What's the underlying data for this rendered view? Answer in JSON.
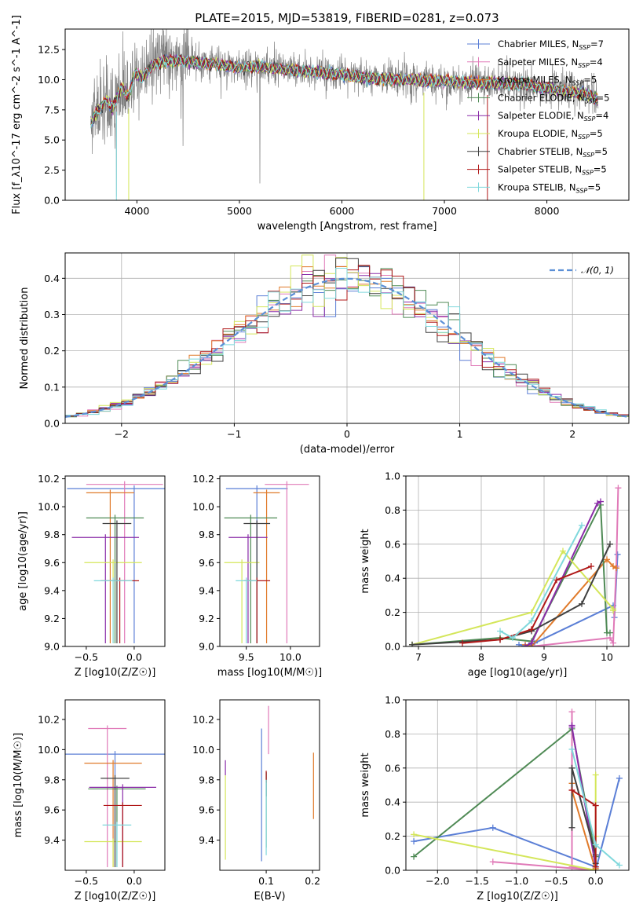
{
  "series_styles": [
    {
      "name": "Chabrier MILES",
      "n": "7",
      "color": "#5b7fd6"
    },
    {
      "name": "Salpeter MILES",
      "n": "4",
      "color": "#e07ab8"
    },
    {
      "name": "Kroupa MILES",
      "n": "5",
      "color": "#e07a2a"
    },
    {
      "name": "Chabrier ELODIE",
      "n": "5",
      "color": "#4f8a55"
    },
    {
      "name": "Salpeter ELODIE",
      "n": "4",
      "color": "#8a2ba8"
    },
    {
      "name": "Kroupa ELODIE",
      "n": "5",
      "color": "#d4e65a"
    },
    {
      "name": "Chabrier STELIB",
      "n": "5",
      "color": "#404040"
    },
    {
      "name": "Salpeter STELIB",
      "n": "5",
      "color": "#b01818"
    },
    {
      "name": "Kroupa STELIB",
      "n": "5",
      "color": "#7fd8dc"
    }
  ],
  "chart_data": [
    {
      "id": "spectrum",
      "type": "line",
      "title": "PLATE=2015, MJD=53819, FIBERID=0281, z=0.073",
      "xlabel": "wavelength [Angstrom, rest frame]",
      "ylabel": "Flux [f_λ10^-17 erg cm^-2 s^-1 A^-1]",
      "xlim": [
        3300,
        8800
      ],
      "ylim": [
        0,
        14.2
      ],
      "xticks": [
        "4000",
        "5000",
        "6000",
        "7000",
        "8000"
      ],
      "yticks": [
        "0.0",
        "2.5",
        "5.0",
        "7.5",
        "10.0",
        "12.5"
      ],
      "data_color": "#808080",
      "continuum": {
        "x": [
          3550,
          3620,
          3700,
          3760,
          3850,
          3920,
          3980,
          4050,
          4150,
          4250,
          4400,
          4600,
          4800,
          5000,
          5200,
          5500,
          5800,
          6000,
          6300,
          6600,
          6900,
          7200,
          7500,
          7800,
          8000,
          8200,
          8400,
          8500
        ],
        "y": [
          6.4,
          7.4,
          8.3,
          7.6,
          9.3,
          8.6,
          10.6,
          10.1,
          11.2,
          11.5,
          11.6,
          11.4,
          11.3,
          11.0,
          11.1,
          10.8,
          10.6,
          10.4,
          10.1,
          10.0,
          9.9,
          9.8,
          9.7,
          9.6,
          9.3,
          9.0,
          8.8,
          8.3
        ]
      },
      "legend_position": "upper right"
    },
    {
      "id": "residuals",
      "type": "histogram",
      "xlabel": "(data-model)/error",
      "ylabel": "Normed distribution",
      "xlim": [
        -2.5,
        2.5
      ],
      "ylim": [
        0,
        0.47
      ],
      "xticks": [
        "−2",
        "−1",
        "0",
        "1",
        "2"
      ],
      "yticks": [
        "0.0",
        "0.1",
        "0.2",
        "0.3",
        "0.4"
      ],
      "bin_width": 0.1,
      "bins_start": -2.5,
      "legend": "N(0,1)",
      "legend_position": "upper right",
      "grid": true
    },
    {
      "id": "age-vs-Z",
      "type": "errorbar",
      "xlabel": "Z [log10(Z/Z☉)]",
      "ylabel": "age  [log10(age/yr)]",
      "xlim": [
        -0.72,
        0.32
      ],
      "ylim": [
        9.0,
        10.22
      ],
      "xticks": [
        "−0.5",
        "0.0"
      ],
      "yticks": [
        "9.0",
        "9.2",
        "9.4",
        "9.6",
        "9.8",
        "10.0",
        "10.2"
      ],
      "points": [
        {
          "x": 0.0,
          "y": 10.13,
          "xerr": 0.7,
          "yerr": 0.0,
          "color": "#5b7fd6"
        },
        {
          "x": -0.1,
          "y": 10.16,
          "xerr": 0.4,
          "yerr": 0.0,
          "color": "#e07ab8"
        },
        {
          "x": -0.25,
          "y": 10.1,
          "xerr": 0.25,
          "yerr": 0.0,
          "color": "#e07a2a"
        },
        {
          "x": -0.2,
          "y": 9.92,
          "xerr": 0.3,
          "yerr": 0.0,
          "color": "#4f8a55"
        },
        {
          "x": -0.3,
          "y": 9.78,
          "xerr": 0.35,
          "yerr": 0.0,
          "color": "#8a2ba8"
        },
        {
          "x": -0.22,
          "y": 9.6,
          "xerr": 0.3,
          "yerr": 0.0,
          "color": "#d4e65a"
        },
        {
          "x": -0.18,
          "y": 9.88,
          "xerr": 0.15,
          "yerr": 0.0,
          "color": "#404040"
        },
        {
          "x": -0.15,
          "y": 9.47,
          "xerr": 0.2,
          "yerr": 0.0,
          "color": "#b01818"
        },
        {
          "x": -0.22,
          "y": 9.47,
          "xerr": 0.2,
          "yerr": 0.0,
          "color": "#7fd8dc"
        }
      ]
    },
    {
      "id": "age-vs-mass",
      "type": "errorbar",
      "xlabel": "mass [log10(M/M☉)]",
      "xlim": [
        9.2,
        10.33
      ],
      "ylim": [
        9.0,
        10.22
      ],
      "xticks": [
        "9.5",
        "10.0"
      ],
      "yticks": [
        "9.0",
        "9.2",
        "9.4",
        "9.6",
        "9.8",
        "10.0",
        "10.2"
      ],
      "points": [
        {
          "x": 9.62,
          "y": 10.13,
          "xerr": 0.35,
          "yerr": 0.0,
          "color": "#5b7fd6"
        },
        {
          "x": 9.96,
          "y": 10.16,
          "xerr": 0.25,
          "yerr": 0.0,
          "color": "#e07ab8"
        },
        {
          "x": 9.73,
          "y": 10.1,
          "xerr": 0.15,
          "yerr": 0.0,
          "color": "#e07a2a"
        },
        {
          "x": 9.55,
          "y": 9.92,
          "xerr": 0.3,
          "yerr": 0.0,
          "color": "#4f8a55"
        },
        {
          "x": 9.52,
          "y": 9.78,
          "xerr": 0.22,
          "yerr": 0.0,
          "color": "#8a2ba8"
        },
        {
          "x": 9.45,
          "y": 9.6,
          "xerr": 0.2,
          "yerr": 0.0,
          "color": "#d4e65a"
        },
        {
          "x": 9.62,
          "y": 9.88,
          "xerr": 0.15,
          "yerr": 0.0,
          "color": "#404040"
        },
        {
          "x": 9.62,
          "y": 9.47,
          "xerr": 0.15,
          "yerr": 0.0,
          "color": "#b01818"
        },
        {
          "x": 9.5,
          "y": 9.47,
          "xerr": 0.12,
          "yerr": 0.0,
          "color": "#7fd8dc"
        }
      ]
    },
    {
      "id": "weight-vs-age",
      "type": "line",
      "xlabel": "age  [log10(age/yr)]",
      "ylabel": "mass weight",
      "xlim": [
        6.8,
        10.35
      ],
      "ylim": [
        0,
        1.0
      ],
      "xticks": [
        "7",
        "8",
        "9",
        "10"
      ],
      "yticks": [
        "0.0",
        "0.2",
        "0.4",
        "0.6",
        "0.8",
        "1.0"
      ],
      "grid": true,
      "series": [
        {
          "color": "#5b7fd6",
          "x": [
            8.6,
            8.75,
            8.85,
            10.1,
            10.12,
            10.17
          ],
          "y": [
            0.01,
            0.0,
            0.02,
            0.24,
            0.17,
            0.54
          ]
        },
        {
          "color": "#e07ab8",
          "x": [
            8.8,
            10.05,
            10.1,
            10.15,
            10.18
          ],
          "y": [
            0.0,
            0.05,
            0.02,
            0.47,
            0.93
          ]
        },
        {
          "color": "#e07a2a",
          "x": [
            8.7,
            8.8,
            10.0,
            10.1,
            10.15
          ],
          "y": [
            0.01,
            0.0,
            0.51,
            0.47,
            0.46
          ]
        },
        {
          "color": "#4f8a55",
          "x": [
            6.9,
            8.3,
            8.8,
            9.9,
            10.0,
            10.05
          ],
          "y": [
            0.01,
            0.05,
            0.03,
            0.83,
            0.08,
            0.08
          ]
        },
        {
          "color": "#8a2ba8",
          "x": [
            8.7,
            8.8,
            9.85,
            9.9
          ],
          "y": [
            0.0,
            0.02,
            0.84,
            0.85
          ]
        },
        {
          "color": "#d4e65a",
          "x": [
            6.9,
            8.8,
            9.3,
            10.1,
            10.1
          ],
          "y": [
            0.01,
            0.2,
            0.56,
            0.22,
            0.21
          ]
        },
        {
          "color": "#404040",
          "x": [
            6.9,
            8.3,
            8.8,
            9.6,
            10.05
          ],
          "y": [
            0.01,
            0.04,
            0.09,
            0.25,
            0.6
          ]
        },
        {
          "color": "#b01818",
          "x": [
            7.7,
            8.3,
            8.8,
            9.2,
            9.75
          ],
          "y": [
            0.02,
            0.04,
            0.1,
            0.39,
            0.47
          ]
        },
        {
          "color": "#7fd8dc",
          "x": [
            8.3,
            8.5,
            8.8,
            9.6
          ],
          "y": [
            0.09,
            0.05,
            0.15,
            0.71
          ]
        }
      ]
    },
    {
      "id": "mass-vs-Z",
      "type": "errorbar",
      "xlabel": "Z [log10(Z/Z☉)]",
      "ylabel": "mass [log10(M/M☉)]",
      "xlim": [
        -0.72,
        0.32
      ],
      "ylim": [
        9.2,
        10.33
      ],
      "xticks": [
        "−0.5",
        "0.0"
      ],
      "yticks": [
        "9.4",
        "9.6",
        "9.8",
        "10.0",
        "10.2"
      ],
      "points": [
        {
          "x": -0.2,
          "y": 9.97,
          "xerr": 0.7,
          "yerr": 0.0,
          "color": "#5b7fd6"
        },
        {
          "x": -0.28,
          "y": 10.14,
          "xerr": 0.2,
          "yerr": 0.0,
          "color": "#e07ab8"
        },
        {
          "x": -0.22,
          "y": 9.91,
          "xerr": 0.3,
          "yerr": 0.0,
          "color": "#e07a2a"
        },
        {
          "x": -0.18,
          "y": 9.74,
          "xerr": 0.3,
          "yerr": 0.0,
          "color": "#4f8a55"
        },
        {
          "x": -0.12,
          "y": 9.75,
          "xerr": 0.35,
          "yerr": 0.0,
          "color": "#8a2ba8"
        },
        {
          "x": -0.22,
          "y": 9.39,
          "xerr": 0.3,
          "yerr": 0.0,
          "color": "#d4e65a"
        },
        {
          "x": -0.2,
          "y": 9.81,
          "xerr": 0.15,
          "yerr": 0.0,
          "color": "#404040"
        },
        {
          "x": -0.12,
          "y": 9.63,
          "xerr": 0.2,
          "yerr": 0.0,
          "color": "#b01818"
        },
        {
          "x": -0.18,
          "y": 9.5,
          "xerr": 0.15,
          "yerr": 0.0,
          "color": "#7fd8dc"
        }
      ]
    },
    {
      "id": "mass-vs-EBV",
      "type": "errorbar",
      "xlabel": "E(B-V)",
      "xlim": [
        0.0,
        0.215
      ],
      "ylim": [
        9.2,
        10.33
      ],
      "xticks": [
        "0.1",
        "0.2"
      ],
      "yticks": [
        "9.4",
        "9.6",
        "9.8",
        "10.0",
        "10.2"
      ],
      "points": [
        {
          "x": 0.09,
          "y": 9.7,
          "xerr": 0.0,
          "yerr": 0.44,
          "color": "#5b7fd6"
        },
        {
          "x": 0.105,
          "y": 10.13,
          "xerr": 0.0,
          "yerr": 0.16,
          "color": "#e07ab8"
        },
        {
          "x": 0.202,
          "y": 9.76,
          "xerr": 0.0,
          "yerr": 0.22,
          "color": "#e07a2a"
        },
        {
          "x": 0.1,
          "y": 9.6,
          "xerr": 0.0,
          "yerr": 0.25,
          "color": "#4f8a55"
        },
        {
          "x": 0.012,
          "y": 9.88,
          "xerr": 0.0,
          "yerr": 0.05,
          "color": "#8a2ba8"
        },
        {
          "x": 0.012,
          "y": 9.55,
          "xerr": 0.0,
          "yerr": 0.28,
          "color": "#d4e65a"
        },
        {
          "x": 0.1,
          "y": 9.77,
          "xerr": 0.0,
          "yerr": 0.08,
          "color": "#404040"
        },
        {
          "x": 0.1,
          "y": 9.82,
          "xerr": 0.0,
          "yerr": 0.04,
          "color": "#b01818"
        },
        {
          "x": 0.1,
          "y": 9.55,
          "xerr": 0.0,
          "yerr": 0.25,
          "color": "#7fd8dc"
        }
      ]
    },
    {
      "id": "weight-vs-Z",
      "type": "line",
      "xlabel": "Z [log10(Z/Z☉)]",
      "ylabel": "mass weight",
      "xlim": [
        -2.4,
        0.42
      ],
      "ylim": [
        0,
        1.0
      ],
      "xticks": [
        "−2.0",
        "−1.5",
        "−1.0",
        "−0.5",
        "0.0"
      ],
      "yticks": [
        "0.0",
        "0.2",
        "0.4",
        "0.6",
        "0.8",
        "1.0"
      ],
      "grid": true,
      "series": [
        {
          "color": "#5b7fd6",
          "x": [
            -2.3,
            -1.3,
            0.0,
            0.0,
            0.3
          ],
          "y": [
            0.17,
            0.25,
            0.02,
            0.0,
            0.54
          ]
        },
        {
          "color": "#e07ab8",
          "x": [
            -1.3,
            0.0,
            -0.3,
            -0.3,
            -0.3
          ],
          "y": [
            0.05,
            0.0,
            0.02,
            0.47,
            0.93
          ]
        },
        {
          "color": "#e07a2a",
          "x": [
            -0.3,
            -0.3,
            0.0,
            0.0
          ],
          "y": [
            0.51,
            0.47,
            0.0,
            0.01
          ]
        },
        {
          "color": "#4f8a55",
          "x": [
            -2.3,
            -0.3,
            0.0
          ],
          "y": [
            0.08,
            0.83,
            0.08
          ]
        },
        {
          "color": "#8a2ba8",
          "x": [
            -0.3,
            -0.3,
            0.0
          ],
          "y": [
            0.85,
            0.84,
            0.02
          ]
        },
        {
          "color": "#d4e65a",
          "x": [
            -2.3,
            0.0,
            0.0,
            0.0
          ],
          "y": [
            0.21,
            0.0,
            0.56,
            0.2
          ]
        },
        {
          "color": "#404040",
          "x": [
            -0.3,
            -0.3,
            0.0,
            0.0
          ],
          "y": [
            0.25,
            0.6,
            0.09,
            0.04
          ]
        },
        {
          "color": "#b01818",
          "x": [
            -0.3,
            0.0,
            0.0
          ],
          "y": [
            0.47,
            0.38,
            0.02
          ]
        },
        {
          "color": "#7fd8dc",
          "x": [
            -0.3,
            0.0,
            0.3
          ],
          "y": [
            0.71,
            0.15,
            0.03
          ]
        }
      ]
    }
  ]
}
